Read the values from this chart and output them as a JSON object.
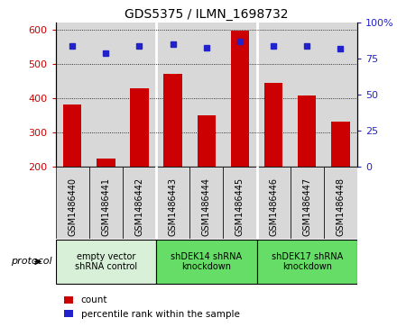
{
  "title": "GDS5375 / ILMN_1698732",
  "samples": [
    "GSM1486440",
    "GSM1486441",
    "GSM1486442",
    "GSM1486443",
    "GSM1486444",
    "GSM1486445",
    "GSM1486446",
    "GSM1486447",
    "GSM1486448"
  ],
  "counts": [
    383,
    225,
    428,
    470,
    350,
    598,
    445,
    408,
    332
  ],
  "percentiles": [
    84,
    79,
    84,
    85,
    83,
    87,
    84,
    84,
    82
  ],
  "ylim_left": [
    200,
    620
  ],
  "ylim_right": [
    0,
    100
  ],
  "yticks_left": [
    200,
    300,
    400,
    500,
    600
  ],
  "yticks_right": [
    0,
    25,
    50,
    75,
    100
  ],
  "bar_color": "#cc0000",
  "dot_color": "#2222cc",
  "groups": [
    {
      "label": "empty vector\nshRNA control",
      "start": 0,
      "end": 3,
      "color": "#d8f0d8"
    },
    {
      "label": "shDEK14 shRNA\nknockdown",
      "start": 3,
      "end": 6,
      "color": "#66dd66"
    },
    {
      "label": "shDEK17 shRNA\nknockdown",
      "start": 6,
      "end": 9,
      "color": "#66dd66"
    }
  ],
  "col_bg": "#d8d8d8",
  "protocol_label": "protocol",
  "legend_count_label": "count",
  "legend_percentile_label": "percentile rank within the sample",
  "title_fontsize": 10,
  "tick_fontsize": 8,
  "label_fontsize": 7
}
